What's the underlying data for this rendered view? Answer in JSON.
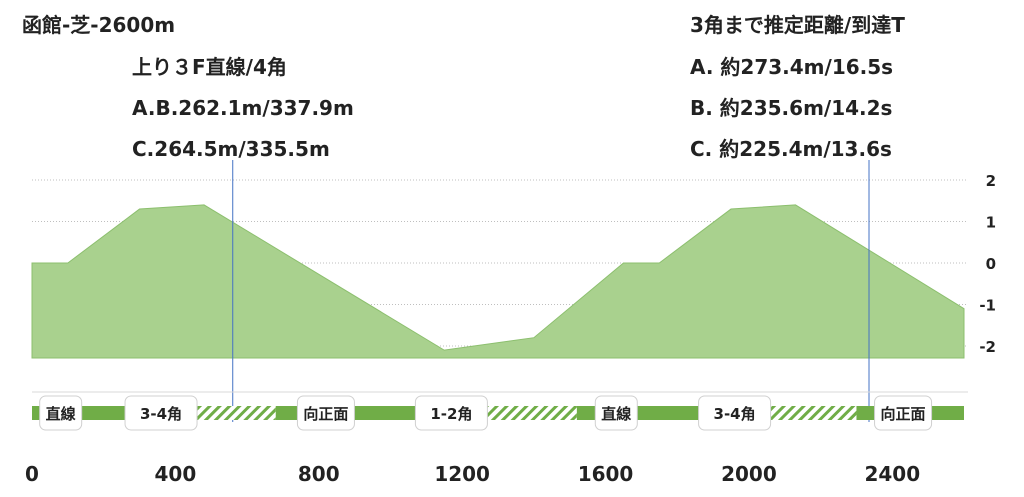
{
  "chart_data": {
    "type": "area",
    "title": "函館-芝-2600m",
    "header_left": {
      "line1": "上り３F直線/4角",
      "line2": "A.B.262.1m/337.9m",
      "line3": "C.264.5m/335.5m"
    },
    "header_right": {
      "title": "3角まで推定距離/到達T",
      "line1": "A. 約273.4m/16.5s",
      "line2": "B. 約235.6m/14.2s",
      "line3": "C. 約225.4m/13.6s"
    },
    "x": [
      0,
      100,
      300,
      480,
      1150,
      1400,
      1650,
      1750,
      1950,
      2130,
      2600
    ],
    "elevation": [
      0,
      0,
      1.3,
      1.4,
      -2.1,
      -1.8,
      0,
      0,
      1.3,
      1.4,
      -1.1
    ],
    "xlim": [
      0,
      2600
    ],
    "ylim": [
      -2,
      2
    ],
    "x_ticks": [
      "0",
      "400",
      "800",
      "1200",
      "1600",
      "2000",
      "2400"
    ],
    "x_tick_values": [
      0,
      400,
      800,
      1200,
      1600,
      2000,
      2400
    ],
    "y_ticks": [
      "2",
      "1",
      "0",
      "-1",
      "-2"
    ],
    "y_tick_values": [
      2,
      1,
      0,
      -1,
      -2
    ],
    "area_color": "#a9d18e",
    "area_edge_color": "#8cbf6e",
    "marker_lines": [
      560,
      2335
    ],
    "marker_line_color": "#4472c4",
    "course_segments": [
      {
        "type": "straight",
        "start": 0,
        "end": 320
      },
      {
        "type": "corner",
        "start": 320,
        "end": 680
      },
      {
        "type": "straight",
        "start": 680,
        "end": 1180
      },
      {
        "type": "corner",
        "start": 1180,
        "end": 1520
      },
      {
        "type": "straight",
        "start": 1520,
        "end": 1950
      },
      {
        "type": "corner",
        "start": 1950,
        "end": 2300
      },
      {
        "type": "straight",
        "start": 2300,
        "end": 2600
      }
    ],
    "course_colors": {
      "straight": "#70ad47",
      "corner": "#70ad47"
    },
    "course_labels": [
      {
        "text": "直線",
        "x": 80
      },
      {
        "text": "3-4角",
        "x": 360
      },
      {
        "text": "向正面",
        "x": 820
      },
      {
        "text": "1-2角",
        "x": 1170
      },
      {
        "text": "直線",
        "x": 1630
      },
      {
        "text": "3-4角",
        "x": 1960
      },
      {
        "text": "向正面",
        "x": 2430
      }
    ]
  }
}
